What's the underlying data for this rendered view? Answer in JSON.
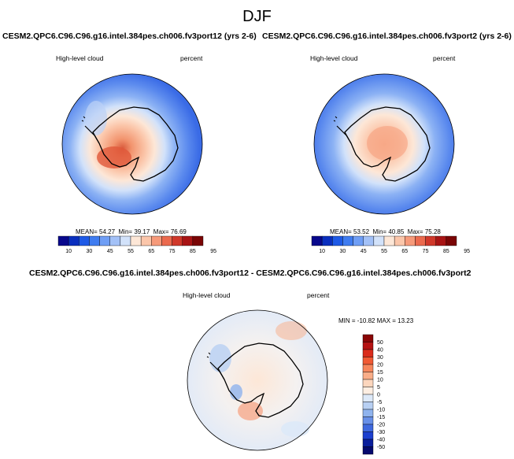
{
  "page": {
    "title": "DJF"
  },
  "panels": [
    {
      "case": "CESM2.QPC6.C96.C96.g16.intel.384pes.ch006.fv3port12 (yrs 2-6)",
      "variable": "High-level cloud",
      "units": "percent",
      "stats": {
        "mean_label": "MEAN=",
        "mean": "54.27",
        "min_label": "Min=",
        "min": "39.17",
        "max_label": "Max=",
        "max": "76.69"
      },
      "colorbar": {
        "labels": [
          "10",
          "30",
          "45",
          "55",
          "65",
          "75",
          "85",
          "95"
        ]
      }
    },
    {
      "case": "CESM2.QPC6.C96.C96.g16.intel.384pes.ch006.fv3port2 (yrs 2-6)",
      "variable": "High-level cloud",
      "units": "percent",
      "stats": {
        "mean_label": "MEAN=",
        "mean": "53.52",
        "min_label": "Min=",
        "min": "40.85",
        "max_label": "Max=",
        "max": "75.28"
      },
      "colorbar": {
        "labels": [
          "10",
          "30",
          "45",
          "55",
          "65",
          "75",
          "85",
          "95"
        ]
      }
    }
  ],
  "diff": {
    "title": "CESM2.QPC6.C96.C96.g16.intel.384pes.ch006.fv3port12 - CESM2.QPC6.C96.C96.g16.intel.384pes.ch006.fv3port2",
    "variable": "High-level cloud",
    "units": "percent",
    "stats": "MIN = -10.82  MAX =  13.23",
    "colorbar": {
      "labels": [
        "50",
        "40",
        "30",
        "20",
        "15",
        "10",
        "5",
        "0",
        "-5",
        "-10",
        "-15",
        "-20",
        "-30",
        "-40",
        "-50"
      ]
    }
  },
  "colors": {
    "seq_bar": [
      "#08088c",
      "#0a2fbe",
      "#1e5ae6",
      "#3f7cf0",
      "#6f9ef5",
      "#a3c1f7",
      "#d2e2fa",
      "#fde7d7",
      "#fbc6aa",
      "#f69a7a",
      "#eb6a4e",
      "#d0382a",
      "#a81414",
      "#7a0505"
    ],
    "diff_bar": [
      "#8a0606",
      "#b51212",
      "#da2c1c",
      "#f05a34",
      "#f6865c",
      "#f9ad88",
      "#fcd6bd",
      "#fdeee2",
      "#dde9f8",
      "#b8d0f3",
      "#8fb3ee",
      "#6890e8",
      "#3f69de",
      "#1c3fcf",
      "#0a1e9c",
      "#050a6e"
    ],
    "coast": "#000000"
  }
}
